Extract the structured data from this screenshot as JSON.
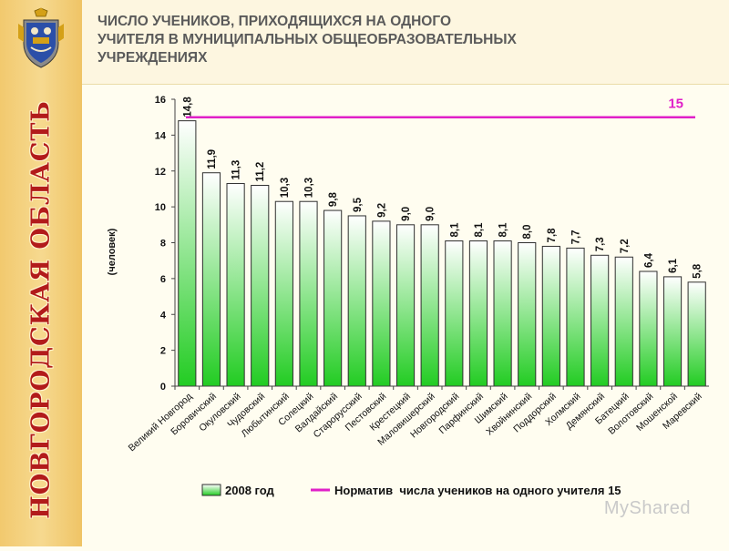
{
  "header": {
    "title": "ЧИСЛО УЧЕНИКОВ, ПРИХОДЯЩИХСЯ НА ОДНОГО\nУЧИТЕЛЯ В МУНИЦИПАЛЬНЫХ  ОБЩЕОБРАЗОВАТЕЛЬНЫХ\nУЧРЕЖДЕНИЯХ"
  },
  "sidebar": {
    "vertical_title": "НОВГОРОДСКАЯ ОБЛАСТЬ"
  },
  "watermark": {
    "text": "MyShared"
  },
  "chart_data": {
    "type": "bar",
    "title": "",
    "xlabel": "",
    "ylabel": "(человек)",
    "ylim": [
      0,
      16
    ],
    "yticks": [
      0,
      2,
      4,
      6,
      8,
      10,
      12,
      14,
      16
    ],
    "grid": false,
    "legend_placement": "bottom",
    "colors": {
      "bar_top": "#ffffff",
      "bar_bottom": "#22cc22",
      "bar_border": "#2f2f2f",
      "norm_line": "#e020c8"
    },
    "categories": [
      "Великий Новгород",
      "Боровичский",
      "Окуловский",
      "Чудовский",
      "Любытинский",
      "Солецкий",
      "Валдайский",
      "Старорусский",
      "Пестовский",
      "Крестецкий",
      "Маловишерский",
      "Новгородский",
      "Парфинский",
      "Шимский",
      "Хвойнинский",
      "Поддорский",
      "Холмский",
      "Демянский",
      "Батецкий",
      "Волотовский",
      "Мошенской",
      "Маревский"
    ],
    "series": [
      {
        "name": "2008 год",
        "values": [
          14.8,
          11.9,
          11.3,
          11.2,
          10.3,
          10.3,
          9.8,
          9.5,
          9.2,
          9.0,
          9.0,
          8.1,
          8.1,
          8.1,
          8.0,
          7.8,
          7.7,
          7.3,
          7.2,
          6.4,
          6.1,
          5.8
        ],
        "labels": [
          "14,8",
          "11,9",
          "11,3",
          "11,2",
          "10,3",
          "10,3",
          "9,8",
          "9,5",
          "9,2",
          "9,0",
          "9,0",
          "8,1",
          "8,1",
          "8,1",
          "8,0",
          "7,8",
          "7,7",
          "7,3",
          "7,2",
          "6,4",
          "6,1",
          "5,8"
        ]
      }
    ],
    "reference_line": {
      "name": "Норматив  числа учеников на одного учителя 15",
      "value": 15,
      "label": "15"
    }
  }
}
